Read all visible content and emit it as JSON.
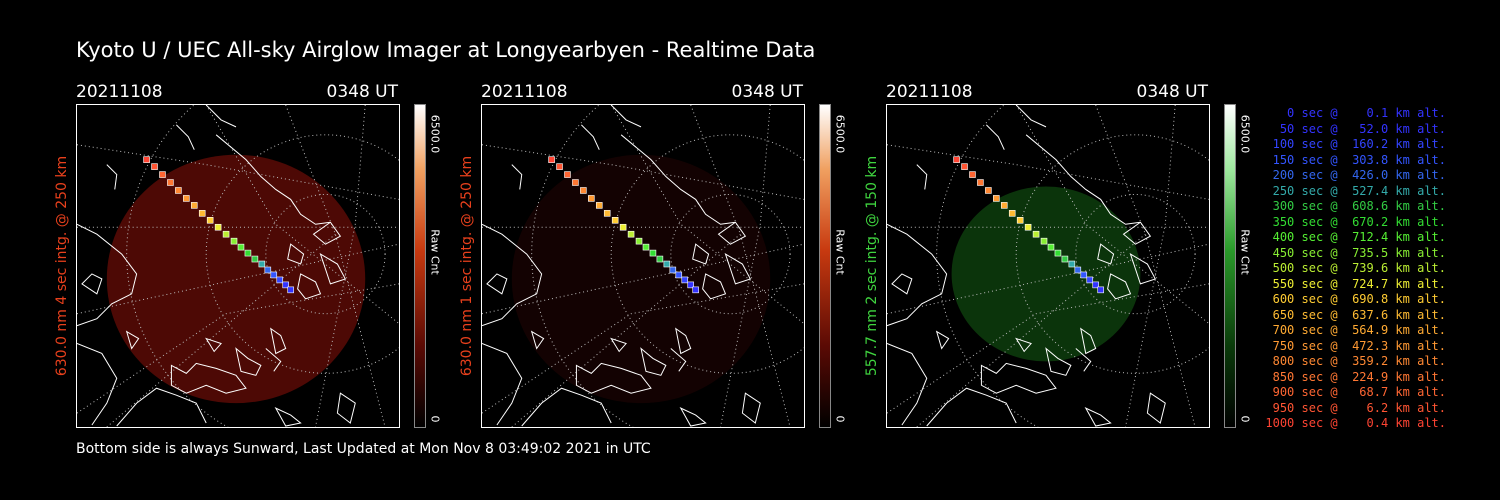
{
  "title": "Kyoto U / UEC All-sky Airglow Imager at Longyearbyen - Realtime Data",
  "footer": "Bottom side is always Sunward, Last Updated at Mon Nov  8 03:49:02 2021 in UTC",
  "panels": [
    {
      "date": "20211108",
      "time": "0348 UT",
      "side_label": "630.0 nm 4 sec intg. @ 250 km",
      "label_color": "#e8401c",
      "colorbar_max": "6500.0",
      "colorbar_min": "0",
      "colorbar_unit": "Raw Cnt",
      "colormap": "red",
      "glow_color": "#5a0a06",
      "glow_opacity": 0.85
    },
    {
      "date": "20211108",
      "time": "0348 UT",
      "side_label": "630.0 nm 1 sec intg. @ 250 km",
      "label_color": "#e8401c",
      "colorbar_max": "6500.0",
      "colorbar_min": "0",
      "colorbar_unit": "Raw Cnt",
      "colormap": "red",
      "glow_color": "#200404",
      "glow_opacity": 0.6
    },
    {
      "date": "20211108",
      "time": "0348 UT",
      "side_label": "557.7 nm 2 sec intg. @ 150 km",
      "label_color": "#3fd43f",
      "colorbar_max": "6500.0",
      "colorbar_min": "0",
      "colorbar_unit": "Raw Cnt",
      "colormap": "green",
      "glow_color": "#0c3a0c",
      "glow_opacity": 0.9
    }
  ],
  "legend": [
    {
      "text": "   0 sec @    0.1 km alt.",
      "color": "#3333ff"
    },
    {
      "text": "  50 sec @   52.0 km alt.",
      "color": "#3333ff"
    },
    {
      "text": " 100 sec @  160.2 km alt.",
      "color": "#3344ff"
    },
    {
      "text": " 150 sec @  303.8 km alt.",
      "color": "#3355ff"
    },
    {
      "text": " 200 sec @  426.0 km alt.",
      "color": "#3366ee"
    },
    {
      "text": " 250 sec @  527.4 km alt.",
      "color": "#33aaaa"
    },
    {
      "text": " 300 sec @  608.6 km alt.",
      "color": "#33cc44"
    },
    {
      "text": " 350 sec @  670.2 km alt.",
      "color": "#33dd33"
    },
    {
      "text": " 400 sec @  712.4 km alt.",
      "color": "#55ee33"
    },
    {
      "text": " 450 sec @  735.5 km alt.",
      "color": "#88ee33"
    },
    {
      "text": " 500 sec @  739.6 km alt.",
      "color": "#bbee33"
    },
    {
      "text": " 550 sec @  724.7 km alt.",
      "color": "#eeee33"
    },
    {
      "text": " 600 sec @  690.8 km alt.",
      "color": "#ffcc33"
    },
    {
      "text": " 650 sec @  637.6 km alt.",
      "color": "#ffbb33"
    },
    {
      "text": " 700 sec @  564.9 km alt.",
      "color": "#ffaa33"
    },
    {
      "text": " 750 sec @  472.3 km alt.",
      "color": "#ff9933"
    },
    {
      "text": " 800 sec @  359.2 km alt.",
      "color": "#ff8833"
    },
    {
      "text": " 850 sec @  224.9 km alt.",
      "color": "#ff7733"
    },
    {
      "text": " 900 sec @   68.7 km alt.",
      "color": "#ff6633"
    },
    {
      "text": " 950 sec @    6.2 km alt.",
      "color": "#ff5533"
    },
    {
      "text": "1000 sec @    0.4 km alt.",
      "color": "#ff4433"
    }
  ]
}
